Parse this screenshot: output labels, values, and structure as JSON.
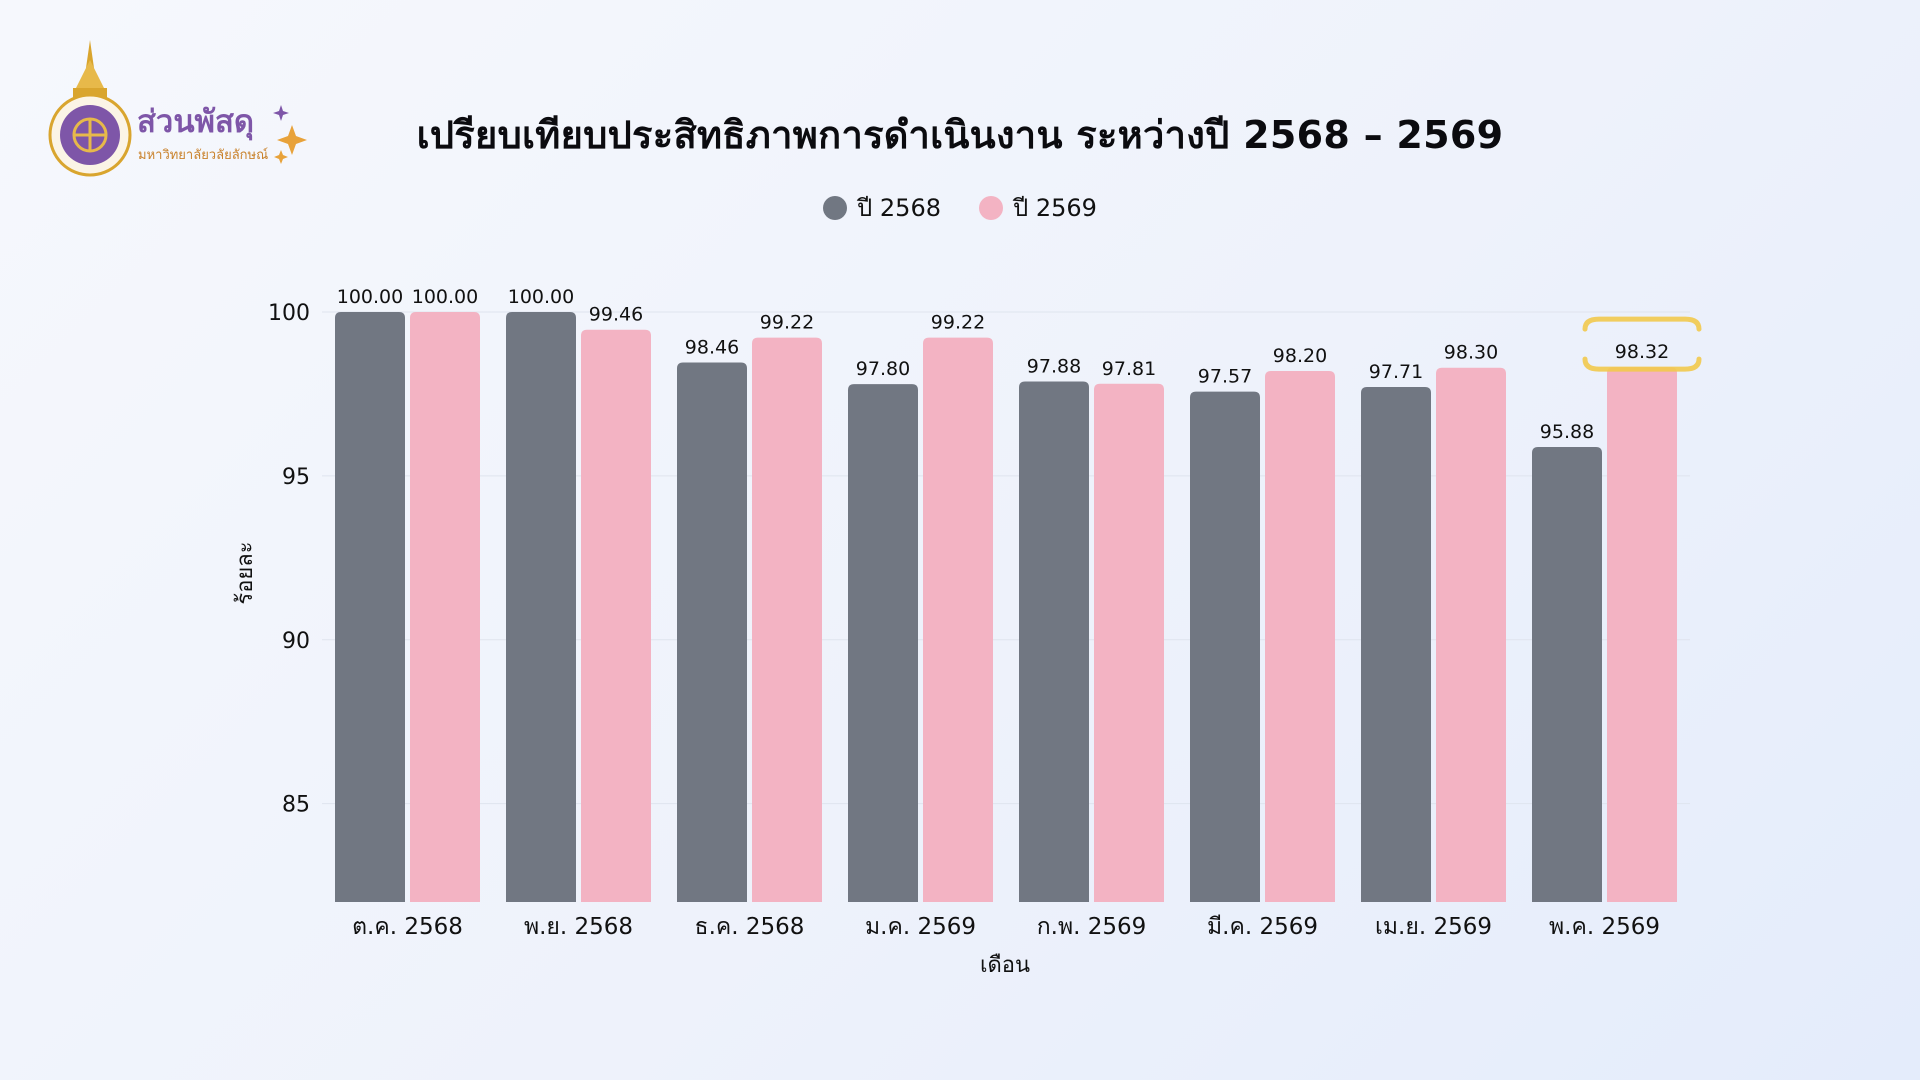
{
  "branding": {
    "logo_text": "ส่วนพัสดุ",
    "logo_subtext": "มหาวิทยาลัยวลัยลักษณ์",
    "logo_primary_color": "#7e56a8",
    "logo_accent_color": "#e0a23a"
  },
  "chart_data": {
    "type": "bar",
    "title": "เปรียบเทียบประสิทธิภาพการดำเนินงาน ระหว่างปี 2568 – 2569",
    "xlabel": "เดือน",
    "ylabel": "ร้อยละ",
    "ylim": [
      82,
      100
    ],
    "yticks": [
      85,
      90,
      95,
      100
    ],
    "grid": true,
    "legend_position": "top-center",
    "categories": [
      "ต.ค. 2568",
      "พ.ย. 2568",
      "ธ.ค. 2568",
      "ม.ค. 2569",
      "ก.พ. 2569",
      "มี.ค. 2569",
      "เม.ย. 2569",
      "พ.ค. 2569"
    ],
    "series": [
      {
        "name": "ปี 2568",
        "color": "#717782",
        "values": [
          100.0,
          100.0,
          98.46,
          97.8,
          97.88,
          97.57,
          97.71,
          95.88
        ],
        "labels": [
          "100.00",
          "100.00",
          "98.46",
          "97.80",
          "97.88",
          "97.57",
          "97.71",
          "95.88"
        ]
      },
      {
        "name": "ปี 2569",
        "color": "#f3b3c3",
        "values": [
          100.0,
          99.46,
          99.22,
          99.22,
          97.81,
          98.2,
          98.3,
          98.32
        ],
        "labels": [
          "100.00",
          "99.46",
          "99.22",
          "99.22",
          "97.81",
          "98.20",
          "98.30",
          "98.32"
        ]
      }
    ],
    "highlight": {
      "series": 1,
      "index": 7,
      "color": "#f2c94c"
    }
  }
}
